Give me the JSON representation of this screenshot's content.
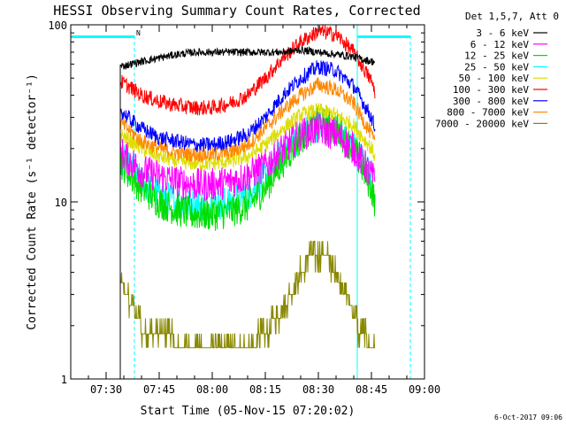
{
  "chart_data": {
    "type": "line",
    "title": "HESSI Observing Summary Count Rates, Corrected",
    "xlabel": "Start Time (05-Nov-15 07:20:02)",
    "ylabel": "Corrected Count Rate (s⁻¹ detector⁻¹)",
    "yscale": "log",
    "ylim": [
      1,
      100
    ],
    "xlim_minutes": [
      440,
      540
    ],
    "x_ticks": [
      "07:30",
      "07:45",
      "08:00",
      "08:15",
      "08:30",
      "08:45",
      "09:00"
    ],
    "x_tick_minutes": [
      450,
      465,
      480,
      495,
      510,
      525,
      540
    ],
    "y_ticks": [
      "1",
      "10",
      "100"
    ],
    "y_tick_values": [
      1,
      10,
      100
    ],
    "legend_title": "Det 1,5,7, Att 0",
    "legend_position": "right-outside",
    "series": [
      {
        "name": "3 - 6 keV",
        "color": "#000000",
        "x": [
          454,
          460,
          465,
          470,
          475,
          480,
          485,
          490,
          495,
          500,
          505,
          510,
          515,
          520,
          525,
          526
        ],
        "y": [
          58,
          62,
          65,
          68,
          70,
          70,
          70,
          70,
          70,
          70,
          72,
          70,
          68,
          66,
          62,
          62
        ]
      },
      {
        "name": "6 - 12 keV",
        "color": "#ff00ff",
        "x": [
          454,
          457,
          460,
          465,
          470,
          475,
          480,
          485,
          490,
          495,
          500,
          505,
          510,
          515,
          520,
          525,
          526
        ],
        "y": [
          19,
          17,
          15,
          14,
          13,
          12.5,
          12.5,
          13,
          14,
          16,
          20,
          24,
          26,
          24,
          20,
          14,
          13
        ]
      },
      {
        "name": "12 - 25 keV",
        "color": "#00dd00",
        "x": [
          454,
          457,
          460,
          465,
          470,
          475,
          480,
          485,
          490,
          495,
          500,
          505,
          510,
          515,
          520,
          525,
          526
        ],
        "y": [
          17,
          14,
          12,
          10,
          9,
          8.5,
          8.5,
          8.8,
          9.5,
          12,
          17,
          23,
          28,
          26,
          20,
          12,
          10
        ]
      },
      {
        "name": "25 - 50 keV",
        "color": "#00ffff",
        "x": [
          454,
          457,
          460,
          465,
          470,
          475,
          480,
          485,
          490,
          495,
          500,
          505,
          510,
          515,
          520,
          525,
          526
        ],
        "y": [
          18,
          15,
          13,
          11,
          10,
          9.6,
          9.6,
          10,
          11,
          14,
          19,
          24,
          27,
          25,
          20,
          14,
          12
        ]
      },
      {
        "name": "50 - 100 keV",
        "color": "#dddd00",
        "x": [
          454,
          457,
          460,
          465,
          470,
          475,
          480,
          485,
          490,
          495,
          500,
          505,
          510,
          515,
          520,
          525,
          526
        ],
        "y": [
          24,
          22,
          20,
          18,
          17,
          16.5,
          16.5,
          17,
          18,
          21,
          26,
          31,
          33,
          31,
          27,
          20,
          18
        ]
      },
      {
        "name": "100 - 300 keV",
        "color": "#ff0000",
        "x": [
          454,
          457,
          460,
          465,
          470,
          475,
          480,
          485,
          490,
          495,
          500,
          505,
          510,
          515,
          520,
          525,
          526
        ],
        "y": [
          48,
          44,
          40,
          37,
          35,
          34,
          34,
          36,
          40,
          50,
          65,
          80,
          92,
          88,
          70,
          48,
          42
        ]
      },
      {
        "name": "300 - 800 keV",
        "color": "#0000ff",
        "x": [
          454,
          457,
          460,
          465,
          470,
          475,
          480,
          485,
          490,
          495,
          500,
          505,
          510,
          515,
          520,
          525,
          526
        ],
        "y": [
          33,
          29,
          26,
          23,
          22,
          21,
          21,
          22,
          24,
          30,
          40,
          50,
          58,
          55,
          45,
          30,
          26
        ]
      },
      {
        "name": "800 - 7000 keV",
        "color": "#ff8800",
        "x": [
          454,
          457,
          460,
          465,
          470,
          475,
          480,
          485,
          490,
          495,
          500,
          505,
          510,
          515,
          520,
          525,
          526
        ],
        "y": [
          28,
          25,
          22,
          20,
          19,
          18.5,
          18.5,
          19,
          21,
          26,
          33,
          40,
          46,
          43,
          36,
          24,
          21
        ]
      },
      {
        "name": "7000 - 20000 keV",
        "color": "#888800",
        "x": [
          454,
          457,
          459,
          461,
          465,
          470,
          475,
          480,
          485,
          490,
          495,
          500,
          504,
          508,
          512,
          515,
          518,
          521,
          524,
          526
        ],
        "y": [
          3.5,
          2.6,
          2.2,
          1.8,
          1.8,
          1.6,
          1.5,
          1.5,
          1.5,
          1.5,
          1.8,
          2.5,
          3.5,
          5,
          5,
          4,
          3,
          2,
          1.6,
          1.5
        ]
      }
    ],
    "bars_top": {
      "color": "#00ffff",
      "segments": [
        [
          440,
          458
        ],
        [
          521,
          536
        ]
      ],
      "label": "N"
    },
    "vertical_lines": {
      "color": "#00ffff",
      "solid_minutes": [
        440,
        521
      ],
      "dashed_minutes": [
        458,
        536
      ]
    }
  },
  "footer_timestamp": "6-Oct-2017 09:06"
}
